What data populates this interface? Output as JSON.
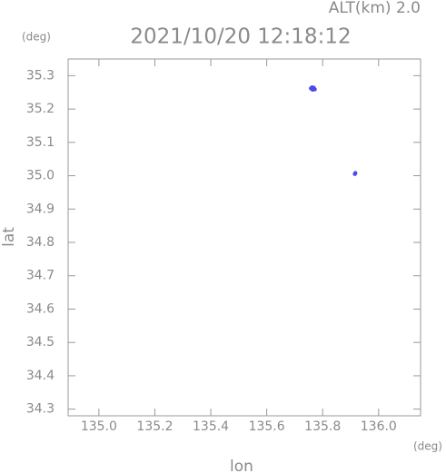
{
  "chart_data": {
    "type": "scatter",
    "title": "2021/10/20 12:18:12",
    "annotation": "ALT(km) 2.0",
    "y_unit": "(deg)",
    "x_unit": "(deg)",
    "xlabel": "lon",
    "ylabel": "lat",
    "color": "#4a4ae8",
    "x": [
      135.758,
      135.762,
      135.766,
      135.77,
      135.764,
      135.768,
      135.772,
      135.76,
      135.915,
      135.917
    ],
    "values": [
      35.262,
      35.265,
      35.263,
      35.26,
      35.258,
      35.264,
      35.259,
      35.261,
      35.005,
      35.008
    ],
    "xlim": [
      134.89,
      136.15
    ],
    "ylim": [
      34.28,
      35.35
    ],
    "xticks": [
      {
        "value": 135,
        "label": "135.0"
      },
      135.2,
      135.4,
      135.6,
      135.8,
      {
        "value": 136,
        "label": "136.0"
      }
    ],
    "yticks": [
      34.3,
      34.4,
      34.5,
      34.6,
      34.7,
      34.8,
      34.9,
      {
        "value": 35,
        "label": "35.0"
      },
      35.1,
      35.2,
      35.3
    ]
  }
}
